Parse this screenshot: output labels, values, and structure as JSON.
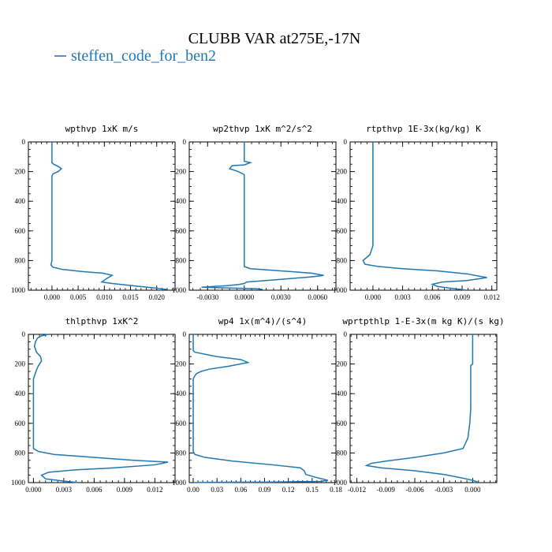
{
  "figure": {
    "title": "CLUBB VAR at275E,-17N",
    "legend_label": "steffen_code_for_ben2",
    "line_color": "#1f77b4"
  },
  "chart_data": [
    {
      "type": "line",
      "title": "wpthvp   1xK m/s",
      "xlim": [
        -0.0045,
        0.0235
      ],
      "ylim": [
        1000,
        0
      ],
      "xticks": [
        0.0,
        0.005,
        0.01,
        0.015,
        0.02
      ],
      "xtick_labels": [
        "0.000",
        "0.005",
        "0.010",
        "0.015",
        "0.020"
      ],
      "yticks": [
        0,
        200,
        400,
        600,
        800,
        1000
      ],
      "ytick_labels": [
        "0",
        "200",
        "400",
        "600",
        "800",
        "1000"
      ],
      "series": [
        {
          "x": [
            0.0,
            0.0,
            0.0,
            0.0003,
            0.0012,
            0.0018,
            0.0012,
            0.0002,
            0.0,
            0.0,
            0.0,
            0.0,
            0.0,
            0.0,
            0.0,
            -0.0002,
            0.0002,
            0.002,
            0.006,
            0.0097,
            0.0115,
            0.0105,
            0.0095,
            0.0115,
            0.0155,
            0.0195,
            0.022
          ],
          "y": [
            0,
            50,
            140,
            150,
            165,
            180,
            200,
            215,
            230,
            300,
            400,
            500,
            600,
            700,
            800,
            830,
            845,
            860,
            875,
            885,
            900,
            920,
            945,
            955,
            970,
            985,
            995
          ]
        }
      ]
    },
    {
      "type": "line",
      "title": "wp2thvp   1xK m^2/s^2",
      "xlim": [
        -0.0045,
        0.0075
      ],
      "ylim": [
        1000,
        0
      ],
      "xticks": [
        -0.003,
        0.0,
        0.003,
        0.006
      ],
      "xtick_labels": [
        "-0.0030",
        "0.0000",
        "0.0030",
        "0.0060"
      ],
      "yticks": [
        0,
        200,
        400,
        600,
        800,
        1000
      ],
      "ytick_labels": [
        "0",
        "200",
        "400",
        "600",
        "800",
        "1000"
      ],
      "series": [
        {
          "x": [
            0.0,
            0.0,
            0.0,
            0.0005,
            0.0,
            -0.001,
            -0.0012,
            -0.0005,
            0.0,
            0.0,
            0.0,
            0.0,
            0.0,
            0.0,
            0.0,
            0.0,
            0.0005,
            0.003,
            0.0055,
            0.0065,
            0.0055,
            0.0025,
            0.0002,
            0.0,
            -0.0005,
            -0.0015,
            -0.0025,
            -0.0035,
            -0.0015,
            0.001,
            0.0015
          ],
          "y": [
            0,
            50,
            130,
            140,
            155,
            160,
            180,
            200,
            220,
            300,
            400,
            500,
            600,
            700,
            800,
            840,
            855,
            870,
            885,
            900,
            910,
            930,
            945,
            955,
            962,
            970,
            975,
            980,
            985,
            990,
            995
          ]
        }
      ]
    },
    {
      "type": "line",
      "title": "rtpthvp   1E-3x(kg/kg) K",
      "xlim": [
        -0.0023,
        0.0125
      ],
      "ylim": [
        1000,
        0
      ],
      "xticks": [
        0.0,
        0.003,
        0.006,
        0.009,
        0.012
      ],
      "xtick_labels": [
        "0.000",
        "0.003",
        "0.006",
        "0.009",
        "0.012"
      ],
      "yticks": [
        0,
        200,
        400,
        600,
        800,
        1000
      ],
      "ytick_labels": [
        "0",
        "200",
        "400",
        "600",
        "800",
        "1000"
      ],
      "series": [
        {
          "x": [
            0.0,
            0.0,
            0.0,
            0.0,
            0.0,
            0.0,
            0.0,
            0.0,
            -0.0003,
            -0.001,
            -0.0008,
            0.0005,
            0.003,
            0.0065,
            0.0095,
            0.0115,
            0.0095,
            0.007,
            0.006,
            0.0065,
            0.008,
            0.0093
          ],
          "y": [
            0,
            100,
            200,
            300,
            400,
            500,
            600,
            700,
            760,
            800,
            825,
            840,
            855,
            870,
            890,
            915,
            935,
            945,
            960,
            975,
            988,
            998
          ]
        }
      ]
    },
    {
      "type": "line",
      "title": "thlpthvp   1xK^2",
      "xlim": [
        -0.0005,
        0.014
      ],
      "ylim": [
        1000,
        0
      ],
      "xticks": [
        0.0,
        0.003,
        0.006,
        0.009,
        0.012
      ],
      "xtick_labels": [
        "0.000",
        "0.003",
        "0.006",
        "0.009",
        "0.012"
      ],
      "yticks": [
        0,
        200,
        400,
        600,
        800,
        1000
      ],
      "ytick_labels": [
        "0",
        "200",
        "400",
        "600",
        "800",
        "1000"
      ],
      "series": [
        {
          "x": [
            0.0015,
            0.0008,
            0.0004,
            0.0002,
            0.0001,
            0.0002,
            0.0003,
            0.0007,
            0.0008,
            0.0005,
            0.0003,
            0.0001,
            0.0,
            0.0,
            0.0,
            0.0,
            0.0,
            0.0,
            0.0,
            0.0005,
            0.002,
            0.006,
            0.01,
            0.0133,
            0.012,
            0.008,
            0.004,
            0.0015,
            0.0008,
            0.0012,
            0.003,
            0.0045
          ],
          "y": [
            0,
            10,
            25,
            50,
            80,
            100,
            120,
            150,
            180,
            210,
            240,
            280,
            300,
            400,
            500,
            600,
            700,
            750,
            770,
            790,
            810,
            830,
            850,
            862,
            880,
            900,
            915,
            930,
            950,
            975,
            990,
            1000
          ]
        }
      ]
    },
    {
      "type": "line",
      "title": "wp4   1x(m^4)/(s^4)",
      "xlim": [
        -0.005,
        0.18
      ],
      "ylim": [
        1000,
        0
      ],
      "xticks": [
        0.0,
        0.03,
        0.06,
        0.09,
        0.12,
        0.15,
        0.18
      ],
      "xtick_labels": [
        "0.00",
        "0.03",
        "0.06",
        "0.09",
        "0.12",
        "0.15",
        "0.18"
      ],
      "yticks": [
        0,
        200,
        400,
        600,
        800,
        1000
      ],
      "ytick_labels": [
        "0",
        "200",
        "400",
        "600",
        "800",
        "1000"
      ],
      "series": [
        {
          "x": [
            0.0,
            0.0,
            0.0,
            0.002,
            0.03,
            0.06,
            0.069,
            0.045,
            0.02,
            0.01,
            0.004,
            0.002,
            0.0,
            0.0,
            0.0,
            0.0,
            0.0,
            0.0,
            0.002,
            0.015,
            0.05,
            0.1,
            0.135,
            0.14,
            0.142,
            0.155,
            0.165,
            0.17,
            0.16,
            0.1,
            0.02,
            0.0
          ],
          "y": [
            0,
            50,
            110,
            120,
            150,
            170,
            190,
            215,
            235,
            250,
            265,
            280,
            300,
            400,
            500,
            600,
            700,
            790,
            810,
            830,
            855,
            880,
            900,
            920,
            945,
            965,
            978,
            985,
            992,
            996,
            998,
            1000
          ]
        }
      ]
    },
    {
      "type": "line",
      "title": "wprtpthlp   1-E-3x(m kg K)/(s kg)",
      "xlim": [
        -0.0127,
        0.0025
      ],
      "ylim": [
        1000,
        0
      ],
      "xticks": [
        -0.012,
        -0.009,
        -0.006,
        -0.003,
        0.0
      ],
      "xtick_labels": [
        "-0.012",
        "-0.009",
        "-0.006",
        "-0.003",
        "0.000"
      ],
      "yticks": [
        0,
        200,
        400,
        600,
        800,
        1000
      ],
      "ytick_labels": [
        "0",
        "200",
        "400",
        "600",
        "800",
        "1000"
      ],
      "series": [
        {
          "x": [
            0.0,
            0.0,
            0.0,
            -0.0002,
            -0.0002,
            -0.0002,
            -0.0002,
            -0.0003,
            -0.0005,
            -0.001,
            -0.003,
            -0.006,
            -0.009,
            -0.0105,
            -0.011,
            -0.0095,
            -0.006,
            -0.003,
            -0.001,
            0.0,
            0.0005,
            0.0001
          ],
          "y": [
            0,
            100,
            200,
            210,
            300,
            400,
            500,
            600,
            700,
            770,
            800,
            830,
            855,
            870,
            885,
            900,
            920,
            945,
            970,
            985,
            995,
            1000
          ]
        }
      ]
    }
  ]
}
